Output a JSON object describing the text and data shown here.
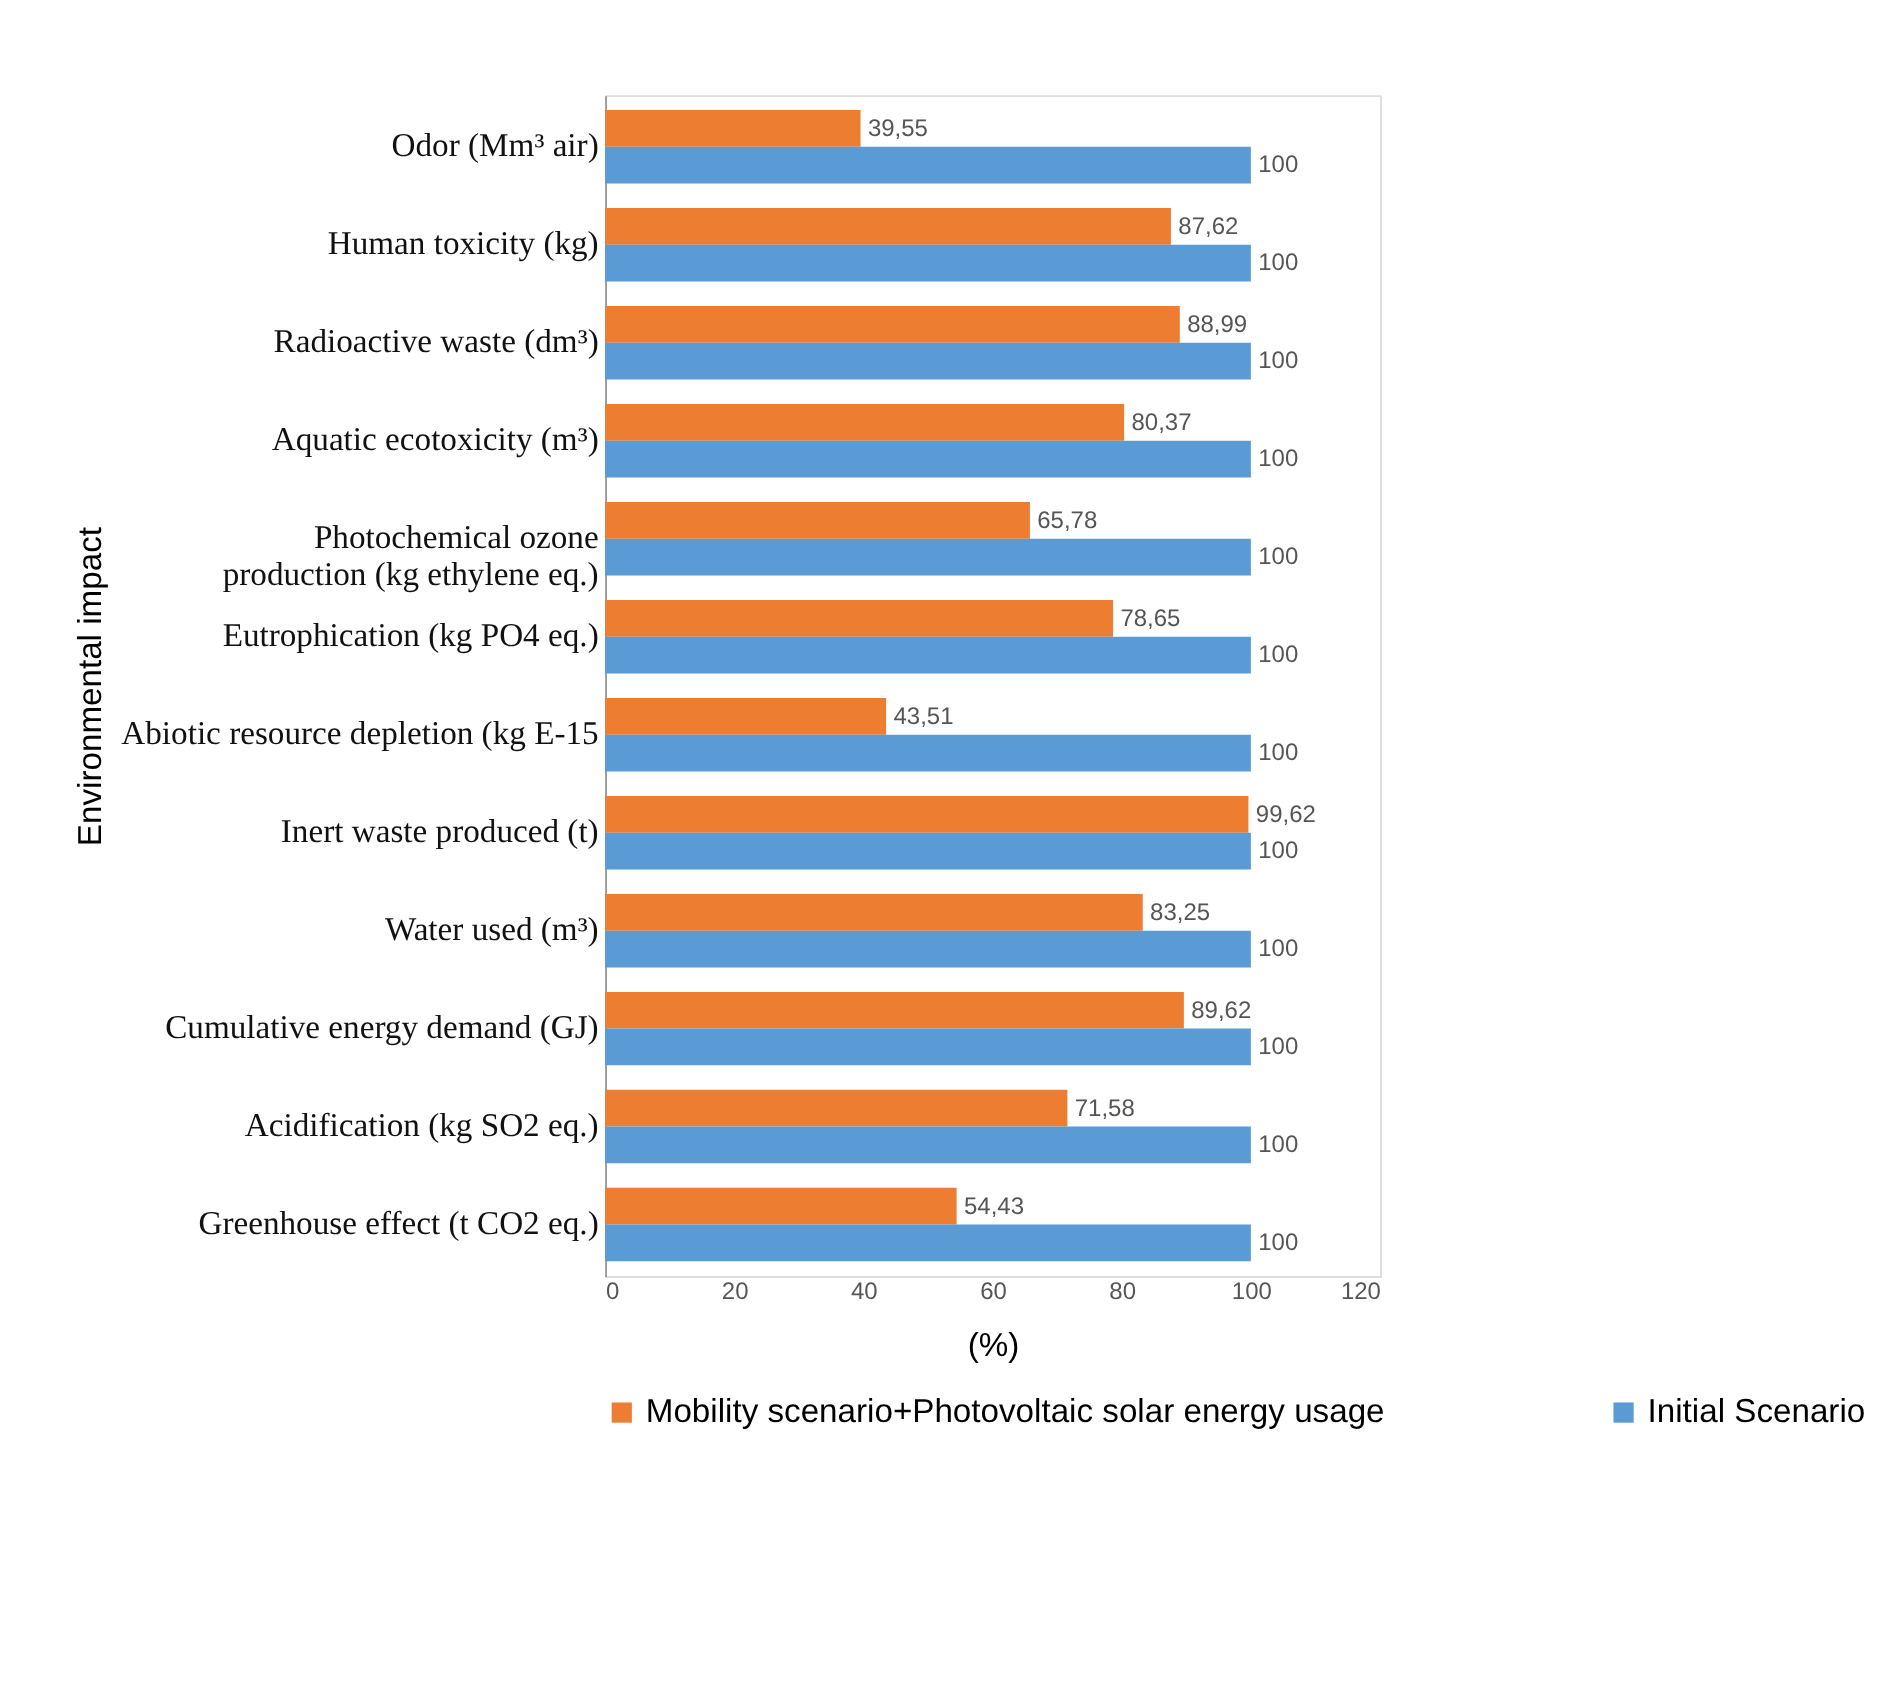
{
  "chart_data": {
    "type": "bar",
    "orientation": "horizontal",
    "categories": [
      "Odor (Mm³ air)",
      "Human toxicity (kg)",
      "Radioactive waste (dm³)",
      "Aquatic ecotoxicity (m³)",
      "Photochemical ozone\nproduction (kg ethylene eq.)",
      "Eutrophication (kg PO4 eq.)",
      "Abiotic resource depletion (kg E-15",
      "Inert waste produced (t)",
      "Water used (m³)",
      "Cumulative energy demand (GJ)",
      "Acidification (kg SO2 eq.)",
      "Greenhouse effect (t CO2 eq.)"
    ],
    "series": [
      {
        "name": "Mobility scenario+Photovoltaic solar energy usage",
        "color": "#ed7d31",
        "values": [
          39.55,
          87.62,
          88.99,
          80.37,
          65.78,
          78.65,
          43.51,
          99.62,
          83.25,
          89.62,
          71.58,
          54.43
        ],
        "value_labels": [
          "39,55",
          "87,62",
          "88,99",
          "80,37",
          "65,78",
          "78,65",
          "43,51",
          "99,62",
          "83,25",
          "89,62",
          "71,58",
          "54,43"
        ]
      },
      {
        "name": "Initial Scenario",
        "color": "#5b9bd5",
        "values": [
          100,
          100,
          100,
          100,
          100,
          100,
          100,
          100,
          100,
          100,
          100,
          100
        ],
        "value_labels": [
          "100",
          "100",
          "100",
          "100",
          "100",
          "100",
          "100",
          "100",
          "100",
          "100",
          "100",
          "100"
        ]
      }
    ],
    "xlabel": "(%)",
    "ylabel": "Environmental impact",
    "xlim": [
      0,
      120
    ],
    "xticks": [
      0,
      20,
      40,
      60,
      80,
      100,
      120
    ],
    "grid": false,
    "legend": "bottom"
  }
}
